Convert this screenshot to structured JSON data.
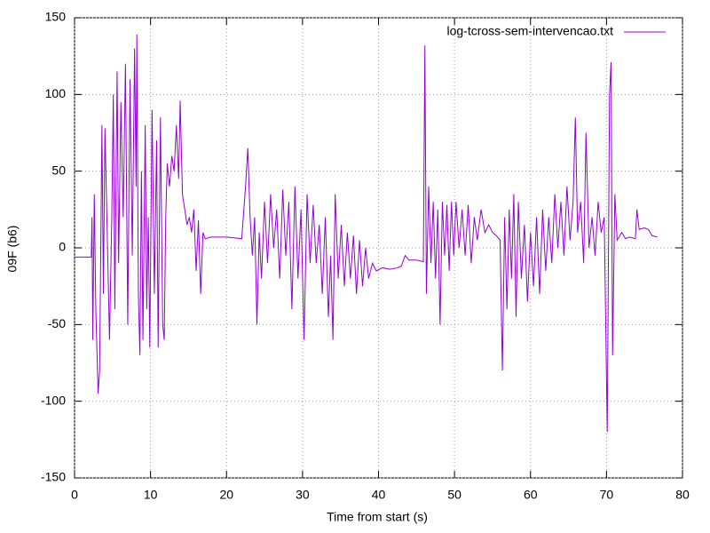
{
  "chart_data": {
    "type": "line",
    "xlabel": "Time from start (s)",
    "ylabel": "09F (b6)",
    "xlim": [
      0,
      80
    ],
    "xticks": [
      0,
      10,
      20,
      30,
      40,
      50,
      60,
      70,
      80
    ],
    "ylim": [
      -150,
      150
    ],
    "yticks": [
      -150,
      -100,
      -50,
      0,
      50,
      100,
      150
    ],
    "grid": true,
    "legend": "top-right",
    "x": [
      0,
      2.2,
      2.3,
      2.4,
      2.6,
      2.8,
      3.1,
      3.3,
      3.6,
      3.8,
      4.0,
      4.3,
      4.6,
      4.9,
      5.1,
      5.3,
      5.6,
      5.8,
      6.1,
      6.4,
      6.7,
      7.0,
      7.3,
      7.6,
      7.9,
      8.1,
      8.2,
      8.4,
      8.6,
      8.8,
      9.0,
      9.3,
      9.5,
      9.7,
      9.9,
      10.2,
      10.5,
      10.8,
      11.0,
      11.3,
      11.6,
      11.8,
      12.0,
      12.2,
      12.5,
      12.8,
      13.1,
      13.4,
      13.7,
      13.9,
      14.2,
      14.5,
      14.8,
      15.1,
      15.4,
      15.7,
      16.0,
      16.3,
      16.6,
      16.9,
      17.2,
      18,
      20,
      22,
      22.5,
      22.8,
      23.1,
      23.4,
      23.7,
      24.0,
      24.3,
      24.6,
      25.0,
      25.4,
      25.8,
      26.2,
      26.6,
      27.0,
      27.4,
      27.8,
      28.2,
      28.6,
      29.0,
      29.4,
      29.8,
      30.2,
      30.6,
      31.0,
      31.4,
      31.8,
      32.2,
      32.6,
      33.0,
      33.4,
      33.7,
      34.0,
      34.3,
      34.7,
      35.1,
      35.5,
      35.9,
      36.3,
      36.7,
      37.1,
      37.5,
      37.9,
      38.3,
      38.7,
      39.2,
      39.7,
      40.5,
      41.5,
      42.5,
      43.0,
      43.5,
      44.0,
      45.0,
      45.9,
      46.1,
      46.3,
      46.6,
      46.9,
      47.2,
      47.5,
      47.8,
      48.1,
      48.4,
      48.7,
      49.0,
      49.3,
      49.6,
      49.9,
      50.2,
      50.6,
      51.0,
      51.4,
      51.8,
      52.2,
      52.6,
      53.0,
      53.5,
      54.0,
      54.5,
      55.0,
      55.5,
      56.0,
      56.3,
      56.6,
      56.9,
      57.2,
      57.5,
      57.8,
      58.1,
      58.4,
      58.8,
      59.2,
      59.6,
      60.0,
      60.4,
      60.8,
      61.2,
      61.6,
      62.0,
      62.4,
      62.8,
      63.2,
      63.6,
      64.0,
      64.4,
      64.8,
      65.2,
      65.6,
      65.9,
      66.2,
      66.6,
      67.0,
      67.3,
      67.7,
      68.1,
      68.5,
      68.9,
      69.3,
      69.7,
      70.1,
      70.4,
      70.6,
      70.8,
      71.1,
      71.4,
      72,
      72.5,
      73,
      73.8,
      74.0,
      74.3,
      75,
      75.5,
      76,
      76.7
    ],
    "series": [
      {
        "name": "log-tcross-sem-intervencao.txt",
        "color": "#9400d3",
        "values": [
          -6,
          -6,
          20,
          -60,
          35,
          -40,
          -95,
          -80,
          80,
          -30,
          78,
          10,
          -60,
          20,
          100,
          -40,
          115,
          -10,
          95,
          20,
          120,
          -50,
          110,
          -5,
          130,
          40,
          139,
          -30,
          -70,
          50,
          -60,
          80,
          -40,
          20,
          -65,
          90,
          -30,
          70,
          -65,
          85,
          -50,
          -60,
          20,
          55,
          40,
          60,
          50,
          80,
          45,
          96,
          35,
          25,
          15,
          20,
          10,
          25,
          -15,
          18,
          -30,
          10,
          6,
          7,
          7,
          6,
          40,
          65,
          20,
          -5,
          20,
          -50,
          10,
          -20,
          30,
          -10,
          35,
          0,
          25,
          -20,
          38,
          -5,
          30,
          -40,
          40,
          -20,
          25,
          -60,
          35,
          -10,
          28,
          -10,
          15,
          -30,
          20,
          -45,
          -5,
          -60,
          35,
          -20,
          15,
          -25,
          10,
          -20,
          8,
          -30,
          5,
          -25,
          0,
          -20,
          -10,
          -15,
          -13,
          -14,
          -13,
          -12,
          -5,
          -8,
          -8,
          -9,
          132,
          -30,
          40,
          -10,
          30,
          -20,
          25,
          -50,
          30,
          -5,
          28,
          -15,
          30,
          -5,
          30,
          0,
          25,
          -5,
          28,
          -10,
          20,
          5,
          25,
          10,
          15,
          10,
          8,
          5,
          -80,
          20,
          -40,
          25,
          -20,
          35,
          -45,
          30,
          -20,
          15,
          -35,
          10,
          -25,
          20,
          -30,
          25,
          -15,
          20,
          -10,
          35,
          0,
          30,
          -5,
          40,
          5,
          30,
          85,
          10,
          30,
          -10,
          75,
          0,
          20,
          -5,
          30,
          10,
          20,
          -120,
          100,
          121,
          -70,
          35,
          5,
          10,
          6,
          7,
          6,
          25,
          12,
          13,
          12,
          8,
          7
        ]
      }
    ]
  }
}
